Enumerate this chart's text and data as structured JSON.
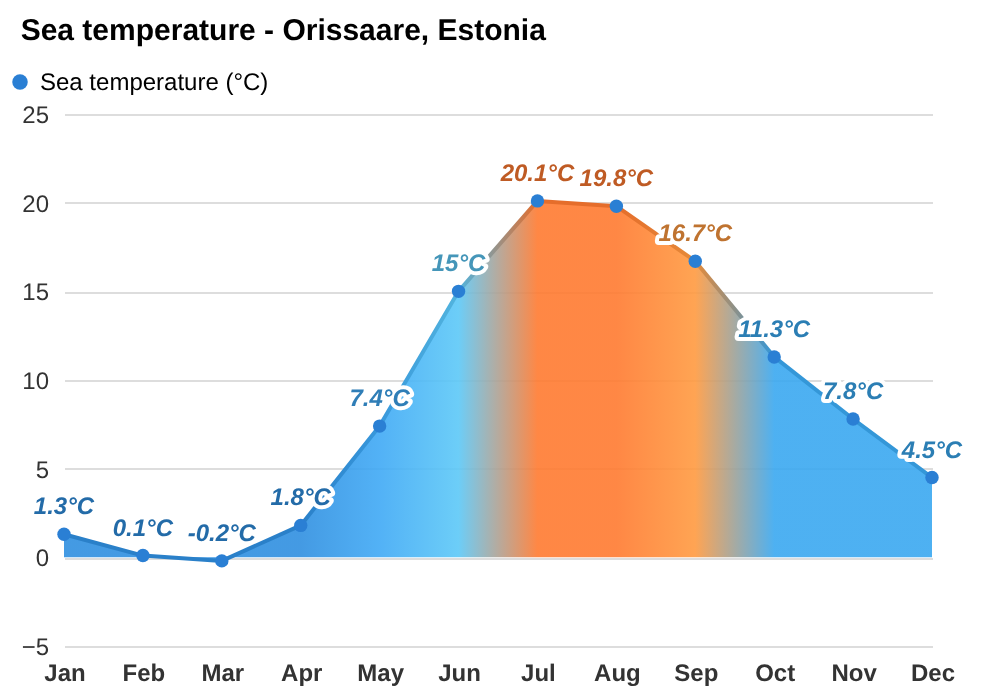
{
  "chart_data": {
    "type": "area",
    "title": "Sea temperature - Orissaare, Estonia",
    "categories": [
      "Jan",
      "Feb",
      "Mar",
      "Apr",
      "May",
      "Jun",
      "Jul",
      "Aug",
      "Sep",
      "Oct",
      "Nov",
      "Dec"
    ],
    "series": [
      {
        "name": "Sea temperature (°C)",
        "color": "#2a7fd4",
        "values": [
          1.3,
          0.1,
          -0.2,
          1.8,
          7.4,
          15,
          20.1,
          19.8,
          16.7,
          11.3,
          7.8,
          4.5
        ],
        "colors": [
          "#2f8fe0",
          "#2f8fe0",
          "#2f8fe0",
          "#2f8fe0",
          "#3fa9f5",
          "#5cc8f7",
          "#ff7a30",
          "#ff7a30",
          "#ff9a40",
          "#3aa8f0",
          "#3aa8f0",
          "#3aa8f0"
        ],
        "value_labels": [
          "1.3°C",
          "0.1°C",
          "-0.2°C",
          "1.8°C",
          "7.4°C",
          "15°C",
          "20.1°C",
          "19.8°C",
          "16.7°C",
          "11.3°C",
          "7.8°C",
          "4.5°C"
        ]
      }
    ],
    "ylim": [
      -5,
      25
    ],
    "yticks": [
      -5,
      0,
      5,
      10,
      15,
      20,
      25
    ],
    "grid": "y",
    "legend": "top left",
    "marker": "circle"
  }
}
